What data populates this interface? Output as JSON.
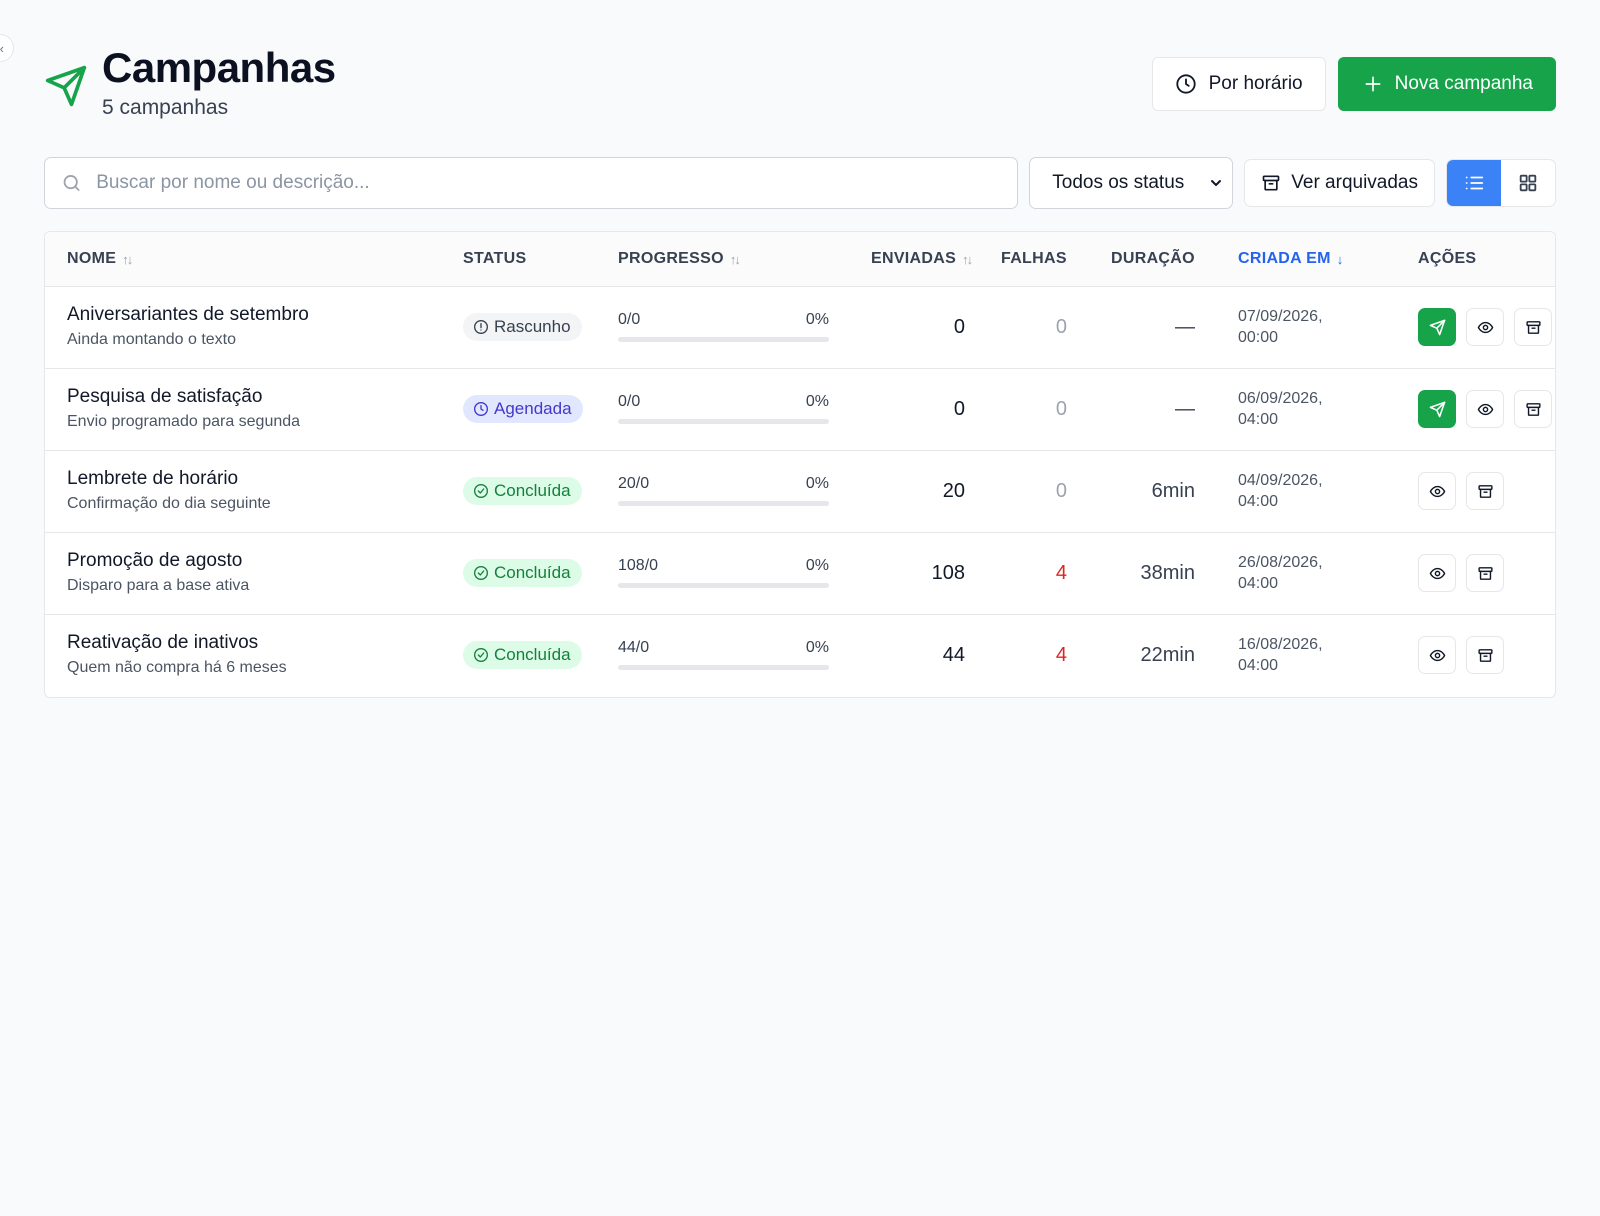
{
  "page": {
    "title": "Campanhas",
    "subtitle": "5 campanhas",
    "by_time_label": "Por horário",
    "new_campaign_label": "Nova campanha"
  },
  "toolbar": {
    "search_placeholder": "Buscar por nome ou descrição...",
    "status_filter": "Todos os status",
    "archived_label": "Ver arquivadas",
    "view_mode": "list"
  },
  "table": {
    "columns": {
      "name": "NOME",
      "status": "STATUS",
      "progress": "PROGRESSO",
      "sent": "ENVIADAS",
      "failed": "FALHAS",
      "duration": "DURAÇÃO",
      "created": "CRIADA EM",
      "actions": "AÇÕES"
    },
    "sorted_by": "created",
    "rows": [
      {
        "name": "Aniversariantes de setembro",
        "description": "Ainda montando o texto",
        "status": "Rascunho",
        "status_kind": "draft",
        "progress_label": "0/0",
        "progress_pct": "0%",
        "progress_value": 0,
        "sent": "0",
        "failed": "0",
        "duration": "—",
        "created_date": "07/09/2026,",
        "created_time": "00:00",
        "can_send": true
      },
      {
        "name": "Pesquisa de satisfação",
        "description": "Envio programado para segunda",
        "status": "Agendada",
        "status_kind": "scheduled",
        "progress_label": "0/0",
        "progress_pct": "0%",
        "progress_value": 0,
        "sent": "0",
        "failed": "0",
        "duration": "—",
        "created_date": "06/09/2026,",
        "created_time": "04:00",
        "can_send": true
      },
      {
        "name": "Lembrete de horário",
        "description": "Confirmação do dia seguinte",
        "status": "Concluída",
        "status_kind": "done",
        "progress_label": "20/0",
        "progress_pct": "0%",
        "progress_value": 0,
        "sent": "20",
        "failed": "0",
        "duration": "6min",
        "created_date": "04/09/2026,",
        "created_time": "04:00",
        "can_send": false
      },
      {
        "name": "Promoção de agosto",
        "description": "Disparo para a base ativa",
        "status": "Concluída",
        "status_kind": "done",
        "progress_label": "108/0",
        "progress_pct": "0%",
        "progress_value": 0,
        "sent": "108",
        "failed": "4",
        "duration": "38min",
        "created_date": "26/08/2026,",
        "created_time": "04:00",
        "can_send": false
      },
      {
        "name": "Reativação de inativos",
        "description": "Quem não compra há 6 meses",
        "status": "Concluída",
        "status_kind": "done",
        "progress_label": "44/0",
        "progress_pct": "0%",
        "progress_value": 0,
        "sent": "44",
        "failed": "4",
        "duration": "22min",
        "created_date": "16/08/2026,",
        "created_time": "04:00",
        "can_send": false
      }
    ]
  },
  "colors": {
    "primary": "#16a34a",
    "accent": "#3b82f6",
    "danger": "#dc2626",
    "draft_bg": "#f3f4f6",
    "draft_fg": "#374151",
    "scheduled_bg": "#e0e7ff",
    "scheduled_fg": "#4338ca",
    "done_bg": "#dcfce7",
    "done_fg": "#15803d"
  },
  "icons": {
    "title": "send-icon",
    "by_time": "clock-icon",
    "new": "plus-icon",
    "search": "search-icon",
    "archive": "archive-icon",
    "list_view": "list-icon",
    "grid_view": "grid-icon",
    "row_send": "send-icon",
    "row_view": "eye-icon",
    "row_archive": "archive-icon"
  }
}
